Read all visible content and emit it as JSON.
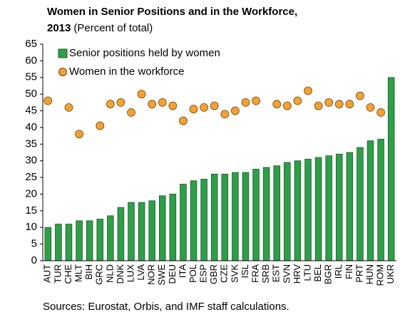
{
  "chart_data": {
    "type": "bar",
    "title": [
      "Women in Senior Positions and in the Workforce,",
      "2013"
    ],
    "subtitle": "(Percent of total)",
    "source": "Sources: Eurostat, Orbis, and IMF staff calculations.",
    "categories": [
      "AUT",
      "TUR",
      "CHE",
      "MLT",
      "BIH",
      "GRC",
      "NLD",
      "DNK",
      "LUX",
      "LVA",
      "NOR",
      "SWE",
      "DEU",
      "ITA",
      "POL",
      "ESP",
      "GBR",
      "CZE",
      "SVK",
      "ISL",
      "FRA",
      "SRB",
      "EST",
      "SVN",
      "HRV",
      "LTU",
      "BEL",
      "BGR",
      "IRL",
      "FIN",
      "PRT",
      "HUN",
      "ROM",
      "UKR"
    ],
    "series": [
      {
        "name": "Senior positions held by women",
        "type": "bar",
        "color": "#2e9e48",
        "values": [
          10,
          11,
          11,
          12,
          12,
          12.5,
          13.5,
          16,
          17.5,
          17.5,
          18,
          19.5,
          20,
          23,
          24,
          24.5,
          26,
          26,
          26.5,
          26.5,
          27.5,
          28,
          28.5,
          29.5,
          30,
          30.5,
          31,
          31.5,
          32,
          32.5,
          34,
          36,
          36.5,
          55
        ]
      },
      {
        "name": "Women in the workforce",
        "type": "scatter",
        "color": "#f5a033",
        "values": [
          48,
          null,
          46,
          38,
          null,
          40.5,
          47,
          47.5,
          44.5,
          50,
          47,
          47.5,
          46.5,
          42,
          45.5,
          46,
          46.5,
          44,
          45,
          47.5,
          48,
          null,
          47,
          46.5,
          48,
          51,
          46.5,
          47.5,
          47,
          47,
          49.5,
          46,
          44.5,
          null
        ]
      }
    ],
    "ylim": [
      0,
      65
    ],
    "yticks": [
      0,
      5,
      10,
      15,
      20,
      25,
      30,
      35,
      40,
      45,
      50,
      55,
      60,
      65
    ],
    "grid": false
  }
}
